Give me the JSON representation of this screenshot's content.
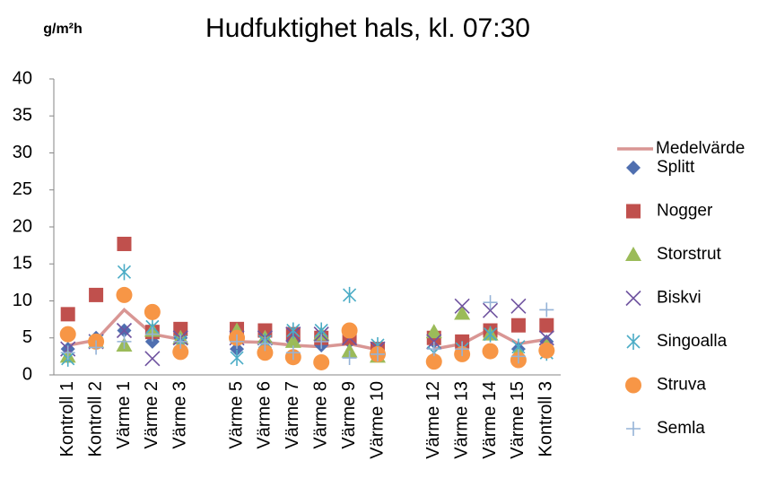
{
  "chart_data": {
    "type": "line",
    "title": "Hudfuktighet hals, kl. 07:30",
    "y_label": "g/m²h",
    "categories": [
      "Kontroll 1",
      "Kontroll 2",
      "Värme 1",
      "Värme 2",
      "Värme 3",
      null,
      "Värme 5",
      "Värme 6",
      "Värme 7",
      "Värme 8",
      "Värme 9",
      "Värme 10",
      null,
      "Värme 12",
      "Värme 13",
      "Värme 14",
      "Värme 15",
      "Kontroll 3"
    ],
    "ylim": [
      0,
      40
    ],
    "yticks": [
      0,
      5,
      10,
      15,
      20,
      25,
      30,
      35,
      40
    ],
    "grid": false,
    "legend": "right",
    "series": [
      {
        "name": "Medelvärde",
        "color": "#d99694",
        "mark": "line",
        "values": [
          4.0,
          4.7,
          8.8,
          5.5,
          4.8,
          null,
          4.5,
          4.4,
          4.0,
          3.8,
          4.2,
          3.4,
          null,
          3.5,
          4.2,
          6.2,
          4.2,
          4.8
        ]
      },
      {
        "name": "Splitt",
        "color": "#4f6fb0",
        "mark": "diamond",
        "values": [
          3.5,
          5,
          6,
          4.5,
          5,
          null,
          3.5,
          4.5,
          4.5,
          4,
          4.5,
          3,
          null,
          4.5,
          4.5,
          6,
          3.5,
          4.5
        ]
      },
      {
        "name": "Nogger",
        "color": "#c0504d",
        "mark": "square",
        "values": [
          8.2,
          10.8,
          17.7,
          5.8,
          6.2,
          null,
          6.2,
          6.0,
          5.5,
          5.0,
          5.0,
          3.5,
          null,
          5.0,
          4.5,
          6.0,
          6.7,
          6.7
        ]
      },
      {
        "name": "Storstrut",
        "color": "#9bbb59",
        "mark": "triangle",
        "values": [
          2.5,
          4.5,
          4,
          6,
          5,
          null,
          6,
          5,
          4.5,
          5.5,
          3.2,
          2.5,
          null,
          5.8,
          8.3,
          5.5,
          3,
          4
        ]
      },
      {
        "name": "Biskvi",
        "color": "#7054a0",
        "mark": "x",
        "values": [
          3.5,
          4.5,
          6,
          2.2,
          5,
          null,
          5,
          5,
          5.5,
          5.5,
          5,
          3.5,
          null,
          4.5,
          9.3,
          8.7,
          9.3,
          5
        ]
      },
      {
        "name": "Singoalla",
        "color": "#4bacc6",
        "mark": "star",
        "values": [
          2.2,
          4.5,
          13.9,
          6.5,
          4.5,
          null,
          2.3,
          4.5,
          6,
          6,
          10.8,
          4,
          null,
          3,
          3.5,
          5.5,
          3.8,
          3
        ]
      },
      {
        "name": "Struva",
        "color": "#f79646",
        "mark": "circle",
        "values": [
          5.5,
          4.5,
          10.8,
          8.5,
          3.1,
          null,
          5,
          3,
          2.4,
          1.7,
          6,
          2.8,
          null,
          1.8,
          2.8,
          3.2,
          2,
          3.3
        ]
      },
      {
        "name": "Semla",
        "color": "#95b3d7",
        "mark": "plus",
        "values": [
          3,
          3.7,
          4.5,
          5.5,
          4.5,
          null,
          4.5,
          4.2,
          3,
          4.5,
          2.3,
          2.8,
          null,
          3.5,
          3.5,
          9.8,
          2.5,
          8.8
        ]
      }
    ]
  }
}
